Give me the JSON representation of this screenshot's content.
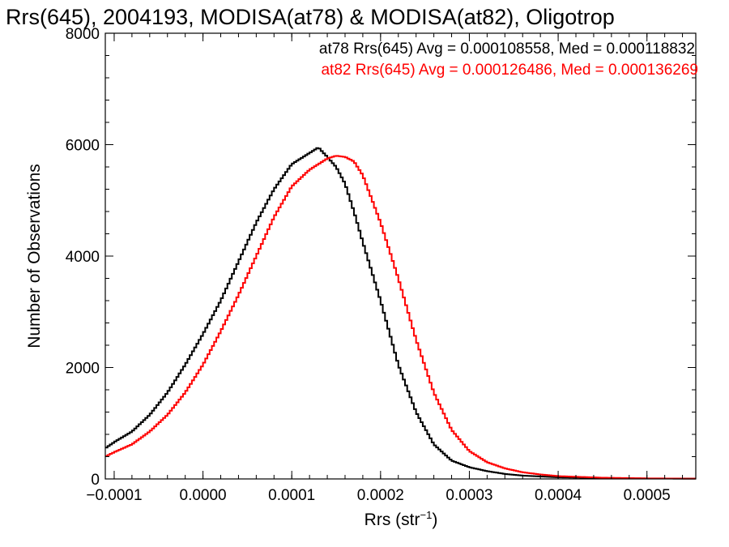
{
  "chart_data": {
    "type": "line",
    "title": "Rrs(645), 2004193, MODISA(at78) & MODISA(at82), Oligotrop",
    "xlabel": "Rrs (str",
    "xlabel_sup": "−1",
    "xlabel_close": ")",
    "ylabel": "Number of Observations",
    "xlim": [
      -0.00011,
      0.000555
    ],
    "ylim": [
      0,
      8000
    ],
    "x_ticks": [
      -0.0001,
      0.0,
      0.0001,
      0.0002,
      0.0003,
      0.0004,
      0.0005
    ],
    "x_tick_labels": [
      "−0.0001",
      "0.0000",
      "0.0001",
      "0.0002",
      "0.0003",
      "0.0004",
      "0.0005"
    ],
    "y_ticks": [
      0,
      2000,
      4000,
      6000,
      8000
    ],
    "y_tick_labels": [
      "0",
      "2000",
      "4000",
      "6000",
      "8000"
    ],
    "grid": false,
    "annotations": [
      {
        "text": "at78 Rrs(645) Avg = 0.000108558, Med = 0.000118832",
        "color": "#000000"
      },
      {
        "text": "at82 Rrs(645) Avg = 0.000126486, Med = 0.000136269",
        "color": "#ff0000"
      }
    ],
    "series": [
      {
        "color": "#000000",
        "x": [
          -0.00011,
          -0.0001,
          -8e-05,
          -6e-05,
          -4e-05,
          -2e-05,
          0.0,
          2e-05,
          4e-05,
          6e-05,
          8e-05,
          0.0001,
          0.00012,
          0.00013,
          0.00014,
          0.00015,
          0.00016,
          0.00017,
          0.00018,
          0.0002,
          0.00022,
          0.00024,
          0.00026,
          0.00028,
          0.0003,
          0.00032,
          0.00034,
          0.00036,
          0.0004,
          0.00045,
          0.0005,
          0.000555
        ],
        "y": [
          550,
          660,
          850,
          1150,
          1550,
          2050,
          2600,
          3200,
          3900,
          4600,
          5200,
          5650,
          5850,
          5950,
          5780,
          5600,
          5300,
          4800,
          4250,
          3200,
          2050,
          1200,
          620,
          330,
          210,
          140,
          90,
          60,
          30,
          15,
          8,
          5
        ]
      },
      {
        "color": "#ff0000",
        "x": [
          -0.00011,
          -0.0001,
          -8e-05,
          -6e-05,
          -4e-05,
          -2e-05,
          0.0,
          2e-05,
          4e-05,
          6e-05,
          8e-05,
          0.0001,
          0.00012,
          0.00014,
          0.00015,
          0.00016,
          0.00017,
          0.00018,
          0.0002,
          0.00022,
          0.00024,
          0.00026,
          0.00028,
          0.0003,
          0.00032,
          0.00034,
          0.00036,
          0.00038,
          0.0004,
          0.00045,
          0.0005,
          0.000555
        ],
        "y": [
          400,
          480,
          620,
          850,
          1150,
          1550,
          2050,
          2650,
          3300,
          4000,
          4700,
          5250,
          5550,
          5750,
          5800,
          5780,
          5700,
          5450,
          4600,
          3600,
          2500,
          1550,
          880,
          500,
          300,
          190,
          120,
          80,
          50,
          22,
          10,
          5
        ]
      }
    ]
  }
}
